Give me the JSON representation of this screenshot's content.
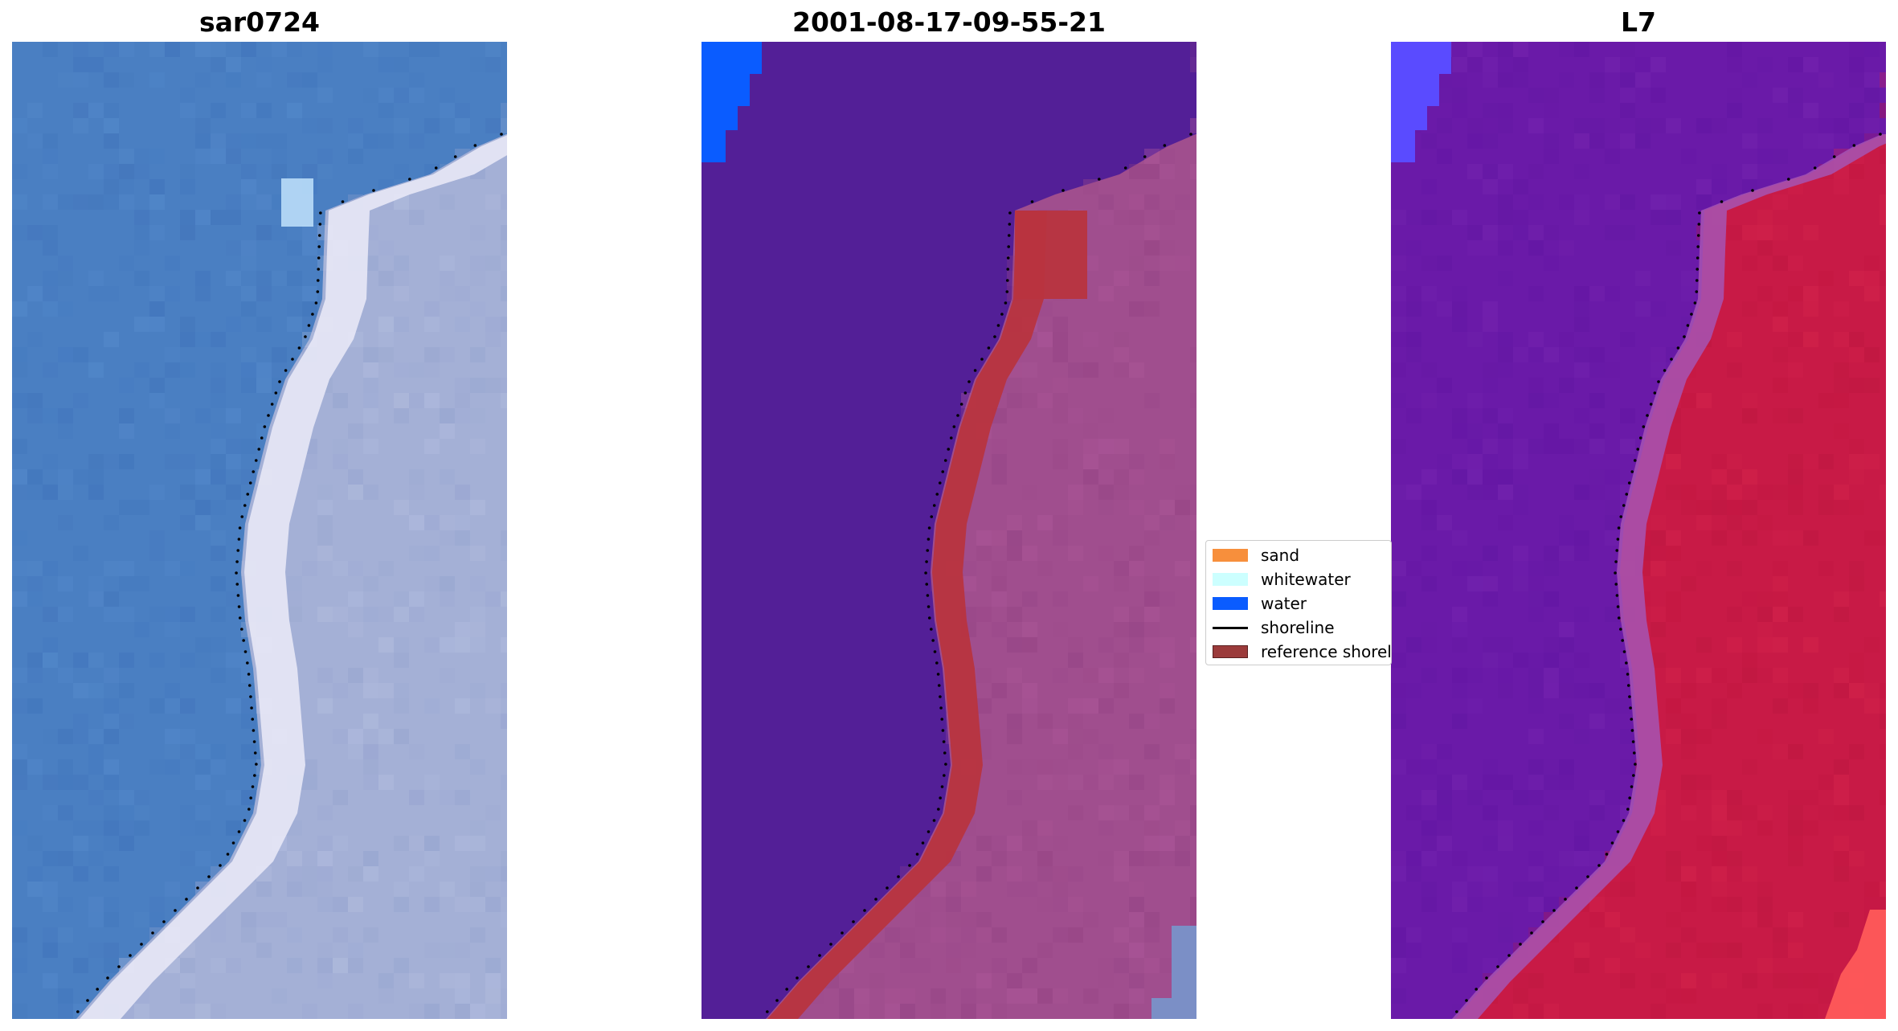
{
  "panels": {
    "left": {
      "title": "sar0724"
    },
    "middle": {
      "title": "2001-08-17-09-55-21"
    },
    "right": {
      "title": "L7"
    }
  },
  "legend": {
    "items": [
      {
        "label": "sand",
        "color": "#f78f3c",
        "kind": "patch"
      },
      {
        "label": "whitewater",
        "color": "#ccffff",
        "kind": "patch"
      },
      {
        "label": "water",
        "color": "#0a5cff",
        "kind": "patch"
      },
      {
        "label": "shoreline",
        "color": "#000000",
        "kind": "line"
      },
      {
        "label": "reference shoreline",
        "color": "#9b3b3b",
        "kind": "patch"
      }
    ]
  },
  "colors": {
    "rgb_water": "#4a7fc2",
    "rgb_beach": "#e8e8f6",
    "rgb_land": "#a4b0d6",
    "class_water": "#531f97",
    "class_water_bright": "#0a5cff",
    "class_land": "#a04e8e",
    "class_ref": "#b8343f",
    "ndwi_water": "#6a1aa8",
    "ndwi_edge": "#a655b4",
    "ndwi_land": "#c81a46",
    "ndwi_blue": "#5a4bff",
    "ndwi_hot": "#ff5a5a"
  }
}
